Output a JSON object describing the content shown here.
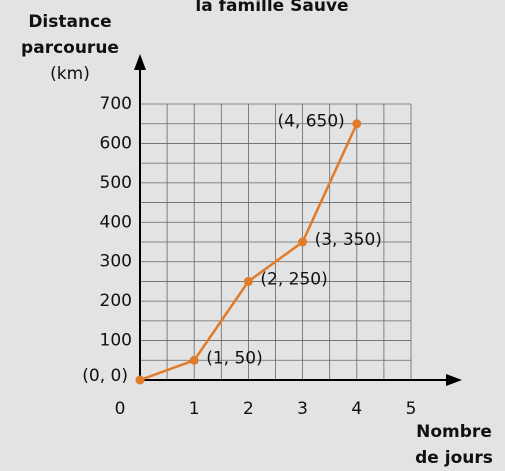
{
  "chart_data": {
    "type": "line",
    "title": "la famille Sauve",
    "ylabel": [
      "Distance",
      "parcourue",
      "(km)"
    ],
    "xlabel": [
      "Nombre",
      "de jours"
    ],
    "x": [
      0,
      1,
      2,
      3,
      4
    ],
    "series": [
      {
        "name": "Distance",
        "color": "#e07b2a",
        "values": [
          0,
          50,
          250,
          350,
          650
        ],
        "value_labels": [
          "(0, 0)",
          "(1, 50)",
          "(2, 250)",
          "(3, 350)",
          "(4, 650)"
        ]
      }
    ],
    "xlim": [
      0,
      5
    ],
    "ylim": [
      0,
      700
    ],
    "xticks": [
      0,
      1,
      2,
      3,
      4,
      5
    ],
    "yticks": [
      100,
      200,
      300,
      400,
      500,
      600,
      700
    ],
    "xminor": [
      0.5,
      1.5,
      2.5,
      3.5,
      4.5
    ],
    "yminor": [
      50,
      150,
      250,
      350,
      450,
      550,
      650
    ],
    "grid": true
  }
}
